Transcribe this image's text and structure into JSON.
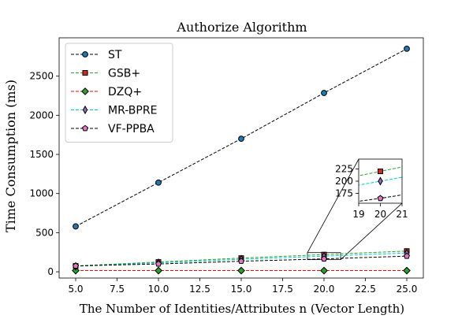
{
  "chart_data": {
    "type": "line",
    "title": "Authorize Algorithm",
    "xlabel": "The Number of Identities/Attributes n (Vector Length)",
    "ylabel": "Time Consumption (ms)",
    "x": [
      5,
      10,
      15,
      20,
      25
    ],
    "xlim": [
      4,
      26
    ],
    "ylim": [
      -80,
      2990
    ],
    "xticks": [
      "5.0",
      "7.5",
      "10.0",
      "12.5",
      "15.0",
      "17.5",
      "20.0",
      "22.5",
      "25.0"
    ],
    "yticks": [
      "0",
      "500",
      "1000",
      "1500",
      "2000",
      "2500"
    ],
    "grid": false,
    "legend_position": "top-left",
    "series": [
      {
        "name": "ST",
        "values": [
          580,
          1140,
          1700,
          2285,
          2850
        ],
        "color": "#000000",
        "marker": "circle",
        "marker_color": "#1f77b4"
      },
      {
        "name": "GSB+",
        "values": [
          75,
          125,
          175,
          220,
          265
        ],
        "color": "#2ca02c",
        "marker": "square",
        "marker_color": "#d62728"
      },
      {
        "name": "DZQ+",
        "values": [
          15,
          15,
          15,
          15,
          15
        ],
        "color": "#ff0000",
        "marker": "diamond",
        "marker_color": "#2ca02c"
      },
      {
        "name": "MR-BPRE",
        "values": [
          70,
          115,
          160,
          200,
          240
        ],
        "color": "#00cccc",
        "marker": "thin_diamond",
        "marker_color": "#9467bd"
      },
      {
        "name": "VF-PPBA",
        "values": [
          75,
          100,
          135,
          165,
          200
        ],
        "color": "#000000",
        "marker": "pentagon",
        "marker_color": "#e377c2"
      }
    ],
    "inset": {
      "xlim": [
        19,
        21
      ],
      "ylim": [
        155,
        245
      ],
      "xticks": [
        "19",
        "20",
        "21"
      ],
      "yticks": [
        "175",
        "200",
        "225"
      ]
    }
  }
}
